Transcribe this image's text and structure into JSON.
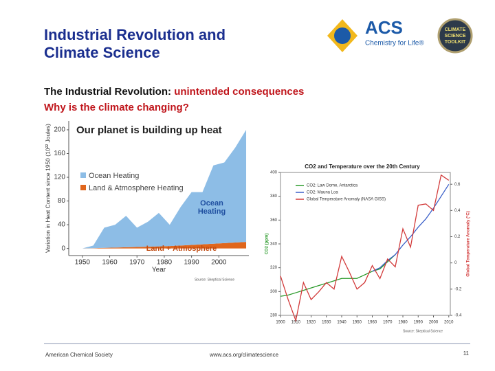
{
  "header": {
    "title": "Industrial Revolution and Climate Science",
    "logos": {
      "acs": "ACS",
      "acs_tagline": "Chemistry for Life®",
      "toolkit": [
        "CLIMATE",
        "SCIENCE",
        "TOOLKIT"
      ]
    }
  },
  "subtitle": {
    "line1_black": "The Industrial Revolution:",
    "line1_red": "unintended consequences",
    "line2": "Why is the climate changing?"
  },
  "chart_data": [
    {
      "type": "area",
      "title": "Our planet is building up heat",
      "x_label": "Year",
      "y_label": "Variation in Heat Content since 1950 (10²² Joules)",
      "x": [
        1950,
        1954,
        1958,
        1962,
        1966,
        1970,
        1974,
        1978,
        1982,
        1986,
        1990,
        1994,
        1998,
        2002,
        2006,
        2010
      ],
      "series": [
        {
          "name": "Land & Atmosphere Heating",
          "color": "#e0661c",
          "values": [
            0,
            0.5,
            1,
            1.5,
            2,
            2.5,
            3,
            3.5,
            4,
            5,
            6,
            7,
            8,
            9,
            10,
            11
          ]
        },
        {
          "name": "Ocean Heating",
          "color": "#8dbde6",
          "values": [
            0,
            4.5,
            34,
            38.5,
            53,
            32.5,
            42,
            56.5,
            36,
            65,
            89,
            88,
            132,
            136,
            160,
            189
          ]
        }
      ],
      "annotations": [
        "Ocean",
        "Heating",
        "Land + Atmosphere"
      ],
      "source": "Source: Skeptical Science",
      "xlim": [
        1945,
        2011
      ],
      "xticks": [
        1950,
        1960,
        1970,
        1980,
        1990,
        2000
      ],
      "ylim": [
        -12,
        215
      ],
      "yticks": [
        0,
        40,
        80,
        120,
        160,
        200
      ]
    },
    {
      "type": "line",
      "title": "CO2 and Temperature over the 20th Century",
      "y_label": "CO2 (ppm)",
      "y2_label": "Global Temperature Anomaly (°C)",
      "x": [
        1900,
        1905,
        1910,
        1915,
        1920,
        1925,
        1930,
        1935,
        1940,
        1945,
        1950,
        1955,
        1960,
        1965,
        1970,
        1975,
        1980,
        1985,
        1990,
        1995,
        2000,
        2005,
        2010
      ],
      "series": [
        {
          "name": "CO2: Law Dome, Antarctica",
          "color": "#2a9a2a",
          "values": [
            296,
            297,
            299,
            301,
            303,
            305,
            307,
            309,
            311,
            311,
            311,
            314,
            317,
            319,
            325,
            331,
            null,
            null,
            null,
            null,
            null,
            null,
            null
          ]
        },
        {
          "name": "CO2: Mauna Loa",
          "color": "#3a5fc8",
          "values": [
            null,
            null,
            null,
            null,
            null,
            null,
            null,
            null,
            null,
            null,
            null,
            null,
            317,
            320,
            326,
            331,
            339,
            346,
            354,
            361,
            370,
            380,
            390
          ]
        },
        {
          "name": "Global Temperature Anomaly (NASA GISS)",
          "color": "#d23a3a",
          "axis": "y2",
          "values": [
            -0.1,
            -0.28,
            -0.44,
            -0.15,
            -0.28,
            -0.22,
            -0.15,
            -0.2,
            0.05,
            -0.07,
            -0.2,
            -0.15,
            -0.02,
            -0.12,
            0.03,
            -0.03,
            0.26,
            0.12,
            0.44,
            0.45,
            0.4,
            0.67,
            0.63
          ]
        }
      ],
      "source": "Source: Skeptical Science",
      "xlim": [
        1900,
        2011
      ],
      "xticks": [
        1900,
        1910,
        1920,
        1930,
        1940,
        1950,
        1960,
        1970,
        1980,
        1990,
        2000,
        2010
      ],
      "ylim": [
        280,
        400
      ],
      "yticks": [
        280,
        300,
        320,
        340,
        360,
        380,
        400
      ],
      "y2lim": [
        -0.4,
        0.69
      ],
      "y2ticks": [
        -0.4,
        -0.2,
        0,
        0.2,
        0.4,
        0.6
      ]
    }
  ],
  "footer": {
    "left": "American Chemical Society",
    "center": "www.acs.org/climatescience",
    "page": "11"
  }
}
